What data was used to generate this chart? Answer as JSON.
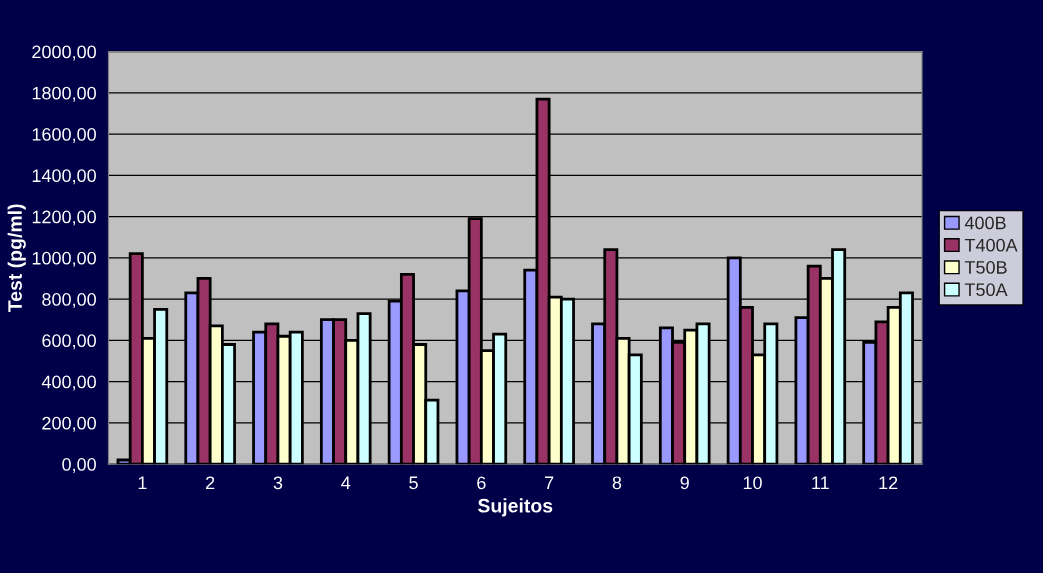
{
  "chart_data": {
    "type": "bar",
    "xlabel": "Sujeitos",
    "ylabel": "Test (pg/ml)",
    "categories": [
      "1",
      "2",
      "3",
      "4",
      "5",
      "6",
      "7",
      "8",
      "9",
      "10",
      "11",
      "12"
    ],
    "series": [
      {
        "name": "400B",
        "color": "#9999ff",
        "values": [
          20,
          830,
          640,
          700,
          790,
          840,
          940,
          680,
          660,
          1000,
          710,
          590
        ]
      },
      {
        "name": "T400A",
        "color": "#993366",
        "values": [
          1020,
          900,
          680,
          700,
          920,
          1190,
          1770,
          1040,
          590,
          760,
          960,
          690
        ]
      },
      {
        "name": "T50B",
        "color": "#ffffcc",
        "values": [
          610,
          670,
          620,
          600,
          580,
          550,
          810,
          610,
          650,
          530,
          900,
          760
        ]
      },
      {
        "name": "T50A",
        "color": "#ccffff",
        "values": [
          750,
          580,
          640,
          730,
          310,
          630,
          800,
          530,
          680,
          680,
          1040,
          830
        ]
      }
    ],
    "ylim": [
      0,
      2000
    ],
    "yticks": [
      {
        "value": 0,
        "label": "0,00"
      },
      {
        "value": 200,
        "label": "200,00"
      },
      {
        "value": 400,
        "label": "400,00"
      },
      {
        "value": 600,
        "label": "600,00"
      },
      {
        "value": 800,
        "label": "800,00"
      },
      {
        "value": 1000,
        "label": "1000,00"
      },
      {
        "value": 1200,
        "label": "1200,00"
      },
      {
        "value": 1400,
        "label": "1400,00"
      },
      {
        "value": 1600,
        "label": "1600,00"
      },
      {
        "value": 1800,
        "label": "1800,00"
      },
      {
        "value": 2000,
        "label": "2000,00"
      }
    ],
    "grid": "y",
    "legend": "right"
  }
}
